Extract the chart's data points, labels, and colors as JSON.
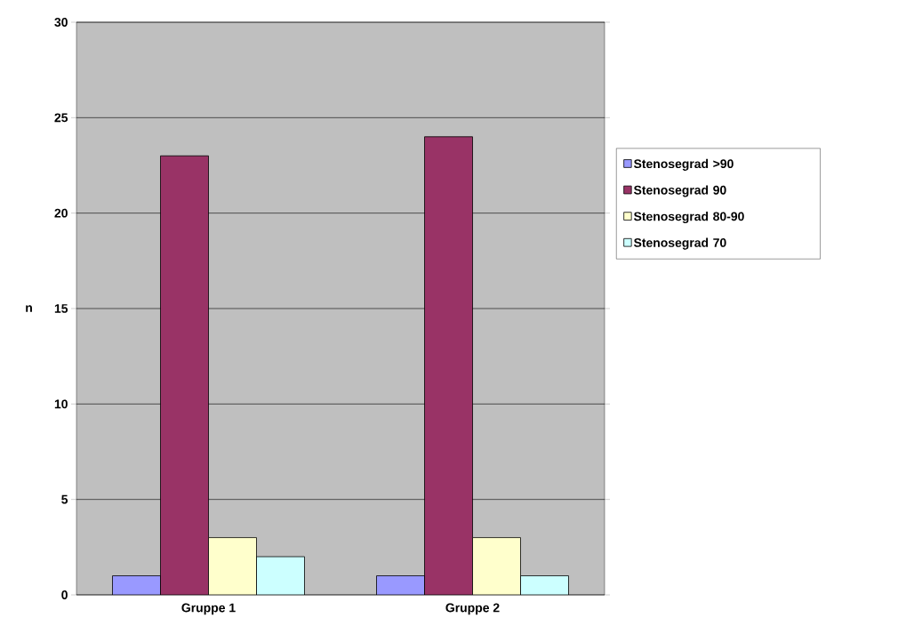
{
  "chart_data": {
    "type": "bar",
    "categories": [
      "Gruppe 1",
      "Gruppe 2"
    ],
    "ylabel": "n",
    "series": [
      {
        "name": "Stenosegrad >90",
        "color": "#9999ff",
        "values": [
          1,
          1
        ]
      },
      {
        "name": "Stenosegrad 90",
        "color": "#993366",
        "values": [
          23,
          24
        ]
      },
      {
        "name": "Stenosegrad 80-90",
        "color": "#ffffcc",
        "values": [
          3,
          3
        ]
      },
      {
        "name": "Stenosegrad 70",
        "color": "#ccffff",
        "values": [
          2,
          1
        ]
      }
    ],
    "ylim": [
      0,
      30
    ],
    "yticks": [
      0,
      5,
      10,
      15,
      20,
      25,
      30
    ],
    "grid": "y",
    "legend": "right"
  }
}
